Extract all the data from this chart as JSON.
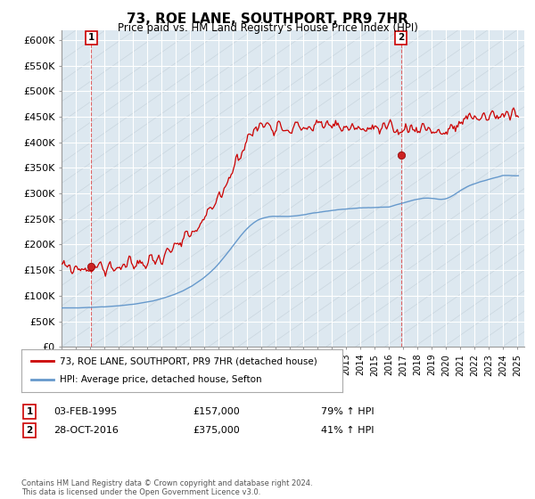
{
  "title": "73, ROE LANE, SOUTHPORT, PR9 7HR",
  "subtitle": "Price paid vs. HM Land Registry's House Price Index (HPI)",
  "ylim": [
    0,
    620000
  ],
  "yticks": [
    0,
    50000,
    100000,
    150000,
    200000,
    250000,
    300000,
    350000,
    400000,
    450000,
    500000,
    550000,
    600000
  ],
  "ytick_labels": [
    "£0",
    "£50K",
    "£100K",
    "£150K",
    "£200K",
    "£250K",
    "£300K",
    "£350K",
    "£400K",
    "£450K",
    "£500K",
    "£550K",
    "£600K"
  ],
  "xlim_start": 1993.0,
  "xlim_end": 2025.5,
  "sale1_x": 1995.09,
  "sale1_y": 157000,
  "sale1_label": "1",
  "sale1_date": "03-FEB-1995",
  "sale1_price": "£157,000",
  "sale1_hpi": "79% ↑ HPI",
  "sale2_x": 2016.83,
  "sale2_y": 375000,
  "sale2_label": "2",
  "sale2_date": "28-OCT-2016",
  "sale2_price": "£375,000",
  "sale2_hpi": "41% ↑ HPI",
  "red_line_color": "#cc0000",
  "blue_line_color": "#6699cc",
  "grid_color": "#cccccc",
  "bg_color": "#ffffff",
  "plot_bg_color": "#dde8f0",
  "legend_label1": "73, ROE LANE, SOUTHPORT, PR9 7HR (detached house)",
  "legend_label2": "HPI: Average price, detached house, Sefton",
  "footer": "Contains HM Land Registry data © Crown copyright and database right 2024.\nThis data is licensed under the Open Government Licence v3.0.",
  "xticks": [
    1993,
    1994,
    1995,
    1996,
    1997,
    1998,
    1999,
    2000,
    2001,
    2002,
    2003,
    2004,
    2005,
    2006,
    2007,
    2008,
    2009,
    2010,
    2011,
    2012,
    2013,
    2014,
    2015,
    2016,
    2017,
    2018,
    2019,
    2020,
    2021,
    2022,
    2023,
    2024,
    2025
  ]
}
